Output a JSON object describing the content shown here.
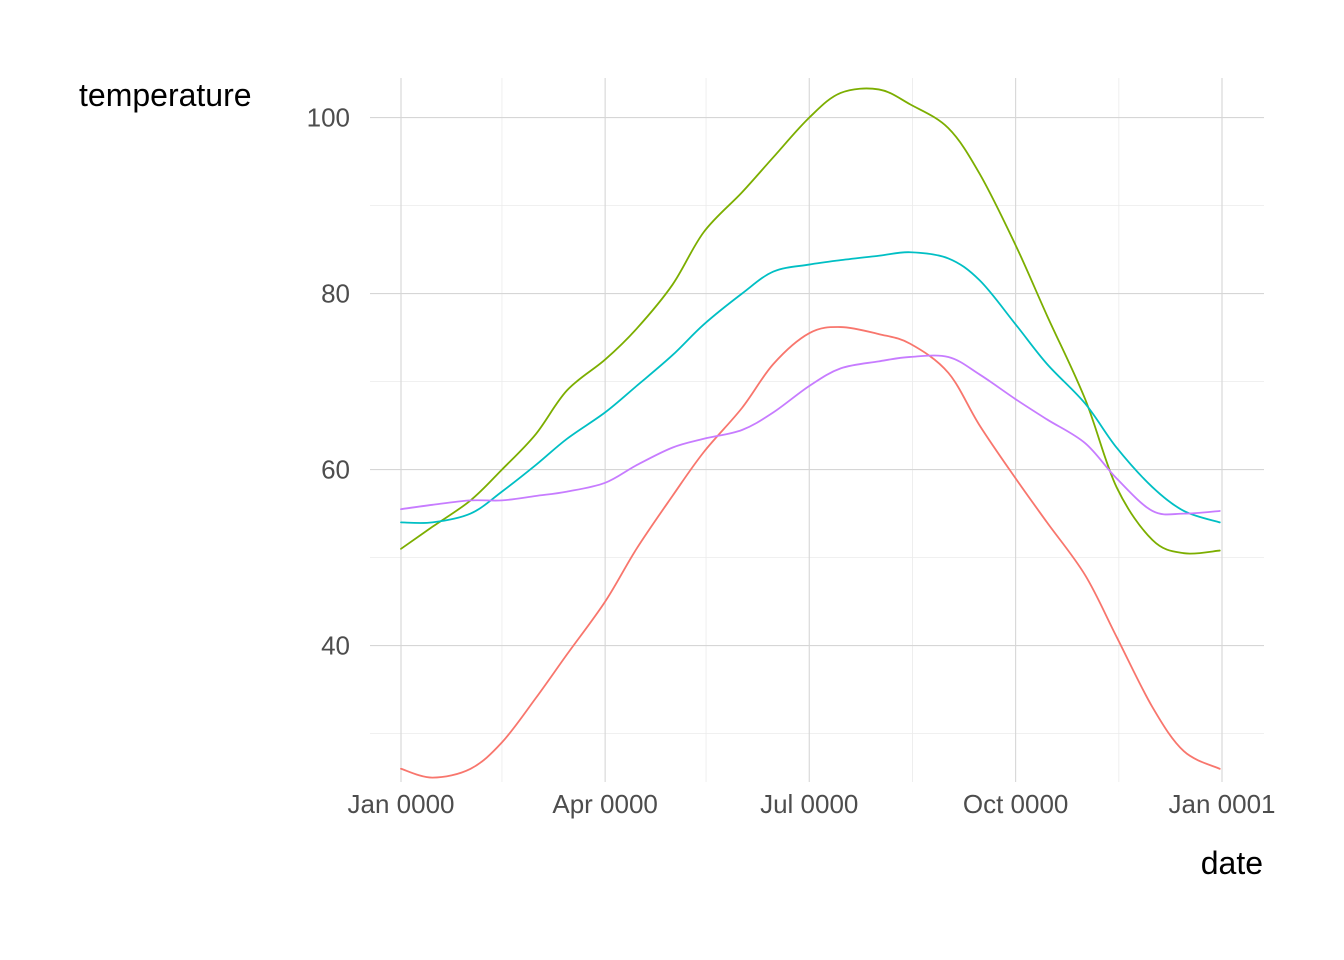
{
  "chart_data": {
    "type": "line",
    "xlabel": "date",
    "ylabel": "temperature",
    "x_ticks": [
      "Jan 0000",
      "Apr 0000",
      "Jul 0000",
      "Oct 0000",
      "Jan 0001"
    ],
    "x_tick_dates": [
      "0000-01-01",
      "0000-04-01",
      "0000-07-01",
      "0000-10-01",
      "0001-01-01"
    ],
    "x_minor_dates": [
      "0000-02-15",
      "0000-05-16",
      "0000-08-16",
      "0000-11-16"
    ],
    "xlim": [
      "0000-01-01",
      "0000-12-31"
    ],
    "y_ticks": [
      40,
      60,
      80,
      100
    ],
    "ylim": [
      24.5,
      104.5
    ],
    "grid": true,
    "legend": "none",
    "series": [
      {
        "color": "#F8766D",
        "x": [
          "0000-01-01",
          "0000-01-15",
          "0000-02-01",
          "0000-02-15",
          "0000-03-01",
          "0000-03-15",
          "0000-04-01",
          "0000-04-15",
          "0000-05-01",
          "0000-05-15",
          "0000-06-01",
          "0000-06-15",
          "0000-07-01",
          "0000-07-15",
          "0000-08-01",
          "0000-08-15",
          "0000-09-01",
          "0000-09-15",
          "0000-10-01",
          "0000-10-15",
          "0000-11-01",
          "0000-11-15",
          "0000-12-01",
          "0000-12-15",
          "0000-12-31"
        ],
        "y": [
          26,
          25,
          26,
          29,
          34,
          39,
          45,
          51,
          57,
          62,
          67,
          72,
          75.5,
          76.2,
          75.4,
          74.3,
          71,
          65,
          59,
          54,
          48,
          41,
          33,
          28,
          26
        ]
      },
      {
        "color": "#7CAE00",
        "x": [
          "0000-01-01",
          "0000-01-15",
          "0000-02-01",
          "0000-02-15",
          "0000-03-01",
          "0000-03-15",
          "0000-04-01",
          "0000-04-15",
          "0000-05-01",
          "0000-05-15",
          "0000-06-01",
          "0000-06-15",
          "0000-07-01",
          "0000-07-15",
          "0000-08-01",
          "0000-08-15",
          "0000-09-01",
          "0000-09-15",
          "0000-10-01",
          "0000-10-15",
          "0000-11-01",
          "0000-11-15",
          "0000-12-01",
          "0000-12-15",
          "0000-12-31"
        ],
        "y": [
          51,
          53.5,
          56.5,
          60,
          64,
          69,
          72.5,
          76,
          81,
          87,
          91.5,
          95.5,
          100,
          102.8,
          103.2,
          101.5,
          98.8,
          93.6,
          85.5,
          77.5,
          68,
          58,
          52,
          50.5,
          50.8
        ]
      },
      {
        "color": "#00BFC4",
        "x": [
          "0000-01-01",
          "0000-01-15",
          "0000-02-01",
          "0000-02-15",
          "0000-03-01",
          "0000-03-15",
          "0000-04-01",
          "0000-04-15",
          "0000-05-01",
          "0000-05-15",
          "0000-06-01",
          "0000-06-15",
          "0000-07-01",
          "0000-07-15",
          "0000-08-01",
          "0000-08-15",
          "0000-09-01",
          "0000-09-15",
          "0000-10-01",
          "0000-10-15",
          "0000-11-01",
          "0000-11-15",
          "0000-12-01",
          "0000-12-15",
          "0000-12-31"
        ],
        "y": [
          54,
          54,
          55,
          57.5,
          60.5,
          63.5,
          66.5,
          69.5,
          73,
          76.5,
          80,
          82.5,
          83.3,
          83.8,
          84.3,
          84.7,
          84,
          81.5,
          76.5,
          72,
          67.5,
          62.5,
          58,
          55.3,
          54
        ]
      },
      {
        "color": "#C77CFF",
        "x": [
          "0000-01-01",
          "0000-01-15",
          "0000-02-01",
          "0000-02-15",
          "0000-03-01",
          "0000-03-15",
          "0000-04-01",
          "0000-04-15",
          "0000-05-01",
          "0000-05-15",
          "0000-06-01",
          "0000-06-15",
          "0000-07-01",
          "0000-07-15",
          "0000-08-01",
          "0000-08-15",
          "0000-09-01",
          "0000-09-15",
          "0000-10-01",
          "0000-10-15",
          "0000-11-01",
          "0000-11-15",
          "0000-12-01",
          "0000-12-15",
          "0000-12-31"
        ],
        "y": [
          55.5,
          56,
          56.5,
          56.5,
          57,
          57.5,
          58.5,
          60.5,
          62.5,
          63.5,
          64.5,
          66.5,
          69.5,
          71.5,
          72.3,
          72.8,
          72.8,
          70.8,
          68,
          65.7,
          63,
          59,
          55.3,
          55,
          55.3
        ]
      }
    ]
  }
}
